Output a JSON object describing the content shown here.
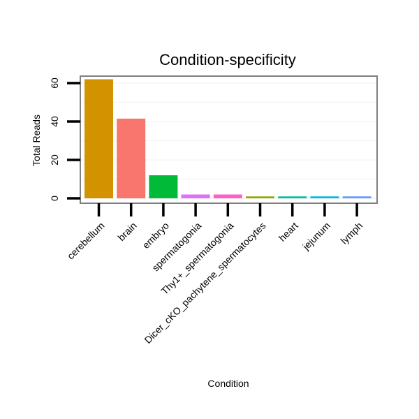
{
  "chart_data": {
    "type": "bar",
    "title": "Condition-specificity",
    "xlabel": "Condition",
    "ylabel": "Total Reads",
    "ylim": [
      0,
      65
    ],
    "yticks": [
      0,
      20,
      40,
      60
    ],
    "grid": true,
    "categories": [
      "cerebellum",
      "brain",
      "embryo",
      "spermatogonia",
      "Thy1+_spermatogonia",
      "Dicer_cKO_pachytene_spermatocytes",
      "heart",
      "jejunum",
      "lymph"
    ],
    "values": [
      62,
      41.5,
      12,
      2,
      2,
      1,
      1,
      1,
      1
    ],
    "colors": [
      "#D39200",
      "#F8766D",
      "#00BA38",
      "#DB72FB",
      "#FF61C3",
      "#93AA00",
      "#00C19F",
      "#00B9E3",
      "#619CFF"
    ]
  }
}
